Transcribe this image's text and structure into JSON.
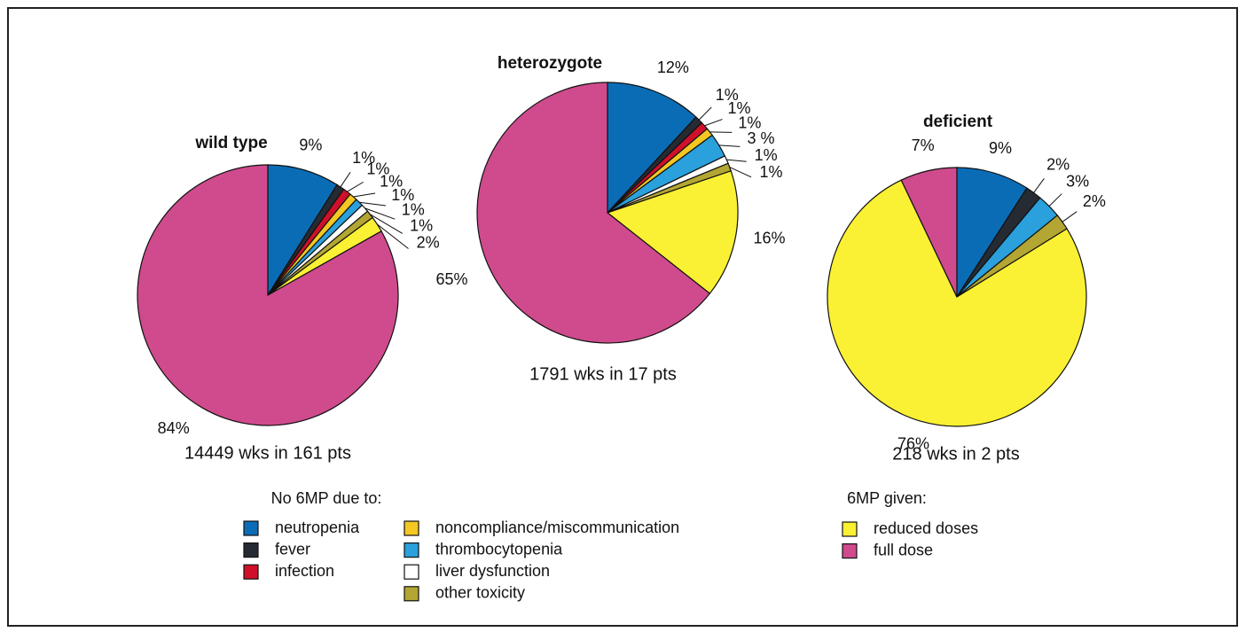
{
  "chart_data": [
    {
      "type": "pie",
      "title": "wild type",
      "subtitle": "14449 wks in 161 pts",
      "categories": [
        "neutropenia",
        "fever",
        "infection",
        "noncompliance/miscommunication",
        "thrombocytopenia",
        "liver dysfunction",
        "other toxicity",
        "reduced doses",
        "full dose"
      ],
      "values": [
        9,
        1,
        1,
        1,
        1,
        1,
        1,
        2,
        84
      ],
      "value_labels": [
        "9%",
        "1%",
        "1%",
        "1%",
        "1%",
        "1%",
        "1%",
        "2%",
        "84%"
      ]
    },
    {
      "type": "pie",
      "title": "heterozygote",
      "subtitle": "1791 wks in 17 pts",
      "categories": [
        "neutropenia",
        "fever",
        "infection",
        "noncompliance/miscommunication",
        "thrombocytopenia",
        "liver dysfunction",
        "other toxicity",
        "reduced doses",
        "full dose"
      ],
      "values": [
        12,
        1,
        1,
        1,
        3,
        1,
        1,
        16,
        65
      ],
      "value_labels": [
        "12%",
        "1%",
        "1%",
        "1%",
        "3 %",
        "1%",
        "1%",
        "16%",
        "65%"
      ]
    },
    {
      "type": "pie",
      "title": "deficient",
      "subtitle": "218 wks in 2 pts",
      "categories": [
        "neutropenia",
        "fever",
        "thrombocytopenia",
        "other toxicity",
        "reduced doses",
        "full dose"
      ],
      "values": [
        9,
        2,
        3,
        2,
        76,
        7
      ],
      "value_labels": [
        "9%",
        "2%",
        "3%",
        "2%",
        "76%",
        "7%"
      ]
    }
  ],
  "legend": [
    {
      "title": "No 6MP due to:",
      "items": [
        {
          "name": "neutropenia",
          "color": "#0b6cb6"
        },
        {
          "name": "fever",
          "color": "#262b33"
        },
        {
          "name": "infection",
          "color": "#d0102a"
        },
        {
          "name": "noncompliance/miscommunication",
          "color": "#f4c722"
        },
        {
          "name": "thrombocytopenia",
          "color": "#2aa0dc"
        },
        {
          "name": "liver dysfunction",
          "color": "#ffffff"
        },
        {
          "name": "other toxicity",
          "color": "#b3a632"
        }
      ]
    },
    {
      "title": "6MP given:",
      "items": [
        {
          "name": "reduced doses",
          "color": "#fbf134"
        },
        {
          "name": "full dose",
          "color": "#cf4b8d"
        }
      ]
    }
  ]
}
